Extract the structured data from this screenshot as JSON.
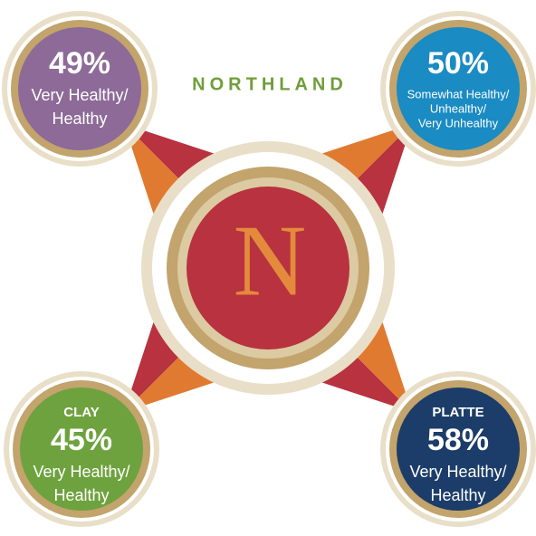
{
  "title": "NORTHLAND",
  "center": "N",
  "regions": [
    {
      "percent": "49%",
      "lines": [
        "Very Healthy/",
        "Healthy"
      ]
    },
    {
      "percent": "50%",
      "lines": [
        "Somewhat Healthy/",
        "Unhealthy/",
        "Very Unhealthy"
      ]
    },
    {
      "name": "CLAY",
      "percent": "45%",
      "lines": [
        "Very Healthy/",
        "Healthy"
      ]
    },
    {
      "name": "PLATTE",
      "percent": "58%",
      "lines": [
        "Very Healthy/",
        "Healthy"
      ]
    }
  ]
}
